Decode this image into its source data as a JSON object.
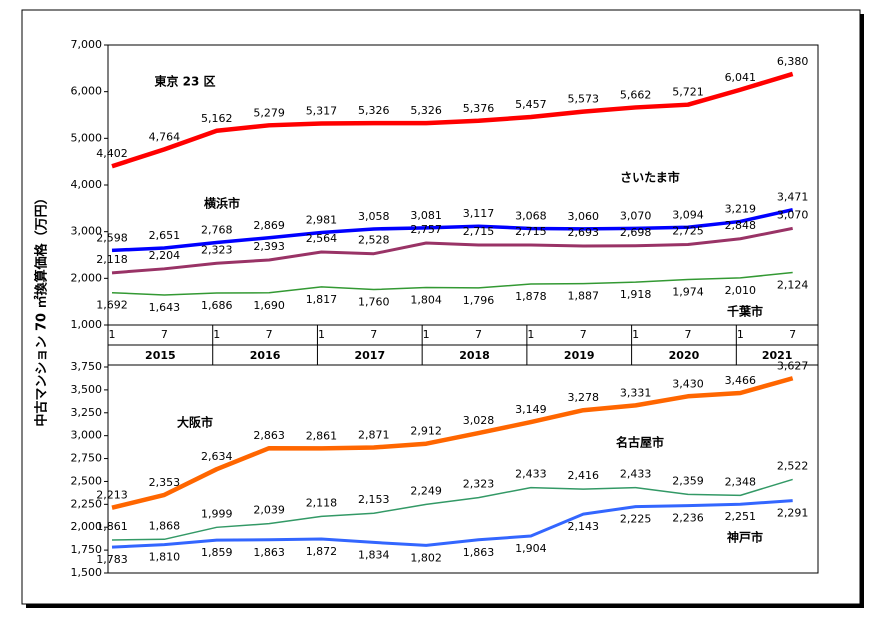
{
  "ylabel": "中古マンション 70 ㎡換算価格（万円）",
  "chart_data": [
    {
      "type": "line",
      "categories": [
        "1",
        "7",
        "1",
        "7",
        "1",
        "7",
        "1",
        "7",
        "1",
        "7",
        "1",
        "7",
        "1",
        "7"
      ],
      "years": [
        "2015",
        "2016",
        "2017",
        "2018",
        "2019",
        "2020",
        "2021"
      ],
      "ylim": [
        1000,
        7000
      ],
      "yticks": [
        {
          "value": 1000,
          "label": "1,000"
        },
        {
          "value": 2000,
          "label": "2,000"
        },
        {
          "value": 3000,
          "label": "3,000"
        },
        {
          "value": 4000,
          "label": "4,000"
        },
        {
          "value": 5000,
          "label": "5,000"
        },
        {
          "value": 6000,
          "label": "6,000"
        },
        {
          "value": 7000,
          "label": "7,000"
        }
      ],
      "series": [
        {
          "name": "東京 23 区",
          "color": "#ff0000",
          "values": [
            4402,
            4764,
            5162,
            5279,
            5317,
            5326,
            5326,
            5376,
            5457,
            5573,
            5662,
            5721,
            6041,
            6380
          ],
          "value_labels": [
            "4,402",
            "4,764",
            "5,162",
            "5,279",
            "5,317",
            "5,326",
            "5,326",
            "5,376",
            "5,457",
            "5,573",
            "5,662",
            "5,721",
            "6,041",
            "6,380"
          ]
        },
        {
          "name": "横浜市",
          "color": "#0000ff",
          "values": [
            2598,
            2651,
            2768,
            2869,
            2981,
            3058,
            3081,
            3117,
            3068,
            3060,
            3070,
            3094,
            3219,
            3471
          ],
          "value_labels": [
            "2,598",
            "2,651",
            "2,768",
            "2,869",
            "2,981",
            "3,058",
            "3,081",
            "3,117",
            "3,068",
            "3,060",
            "3,070",
            "3,094",
            "3,219",
            "3,471"
          ]
        },
        {
          "name": "さいたま市",
          "color": "#993366",
          "values": [
            2118,
            2204,
            2323,
            2393,
            2564,
            2528,
            2757,
            2715,
            2715,
            2693,
            2698,
            2725,
            2848,
            3070
          ],
          "value_labels": [
            "2,118",
            "2,204",
            "2,323",
            "2,393",
            "2,564",
            "2,528",
            "2,757",
            "2,715",
            "2,715",
            "2,693",
            "2,698",
            "2,725",
            "2,848",
            "3,070"
          ]
        },
        {
          "name": "千葉市",
          "color": "#339933",
          "values": [
            1692,
            1643,
            1686,
            1690,
            1817,
            1760,
            1804,
            1796,
            1878,
            1887,
            1918,
            1974,
            2010,
            2124
          ],
          "value_labels": [
            "1,692",
            "1,643",
            "1,686",
            "1,690",
            "1,817",
            "1,760",
            "1,804",
            "1,796",
            "1,878",
            "1,887",
            "1,918",
            "1,974",
            "2,010",
            "2,124"
          ]
        }
      ]
    },
    {
      "type": "line",
      "ylim": [
        1500,
        3750
      ],
      "yticks": [
        {
          "value": 1500,
          "label": "1,500"
        },
        {
          "value": 1750,
          "label": "1,750"
        },
        {
          "value": 2000,
          "label": "2,000"
        },
        {
          "value": 2250,
          "label": "2,250"
        },
        {
          "value": 2500,
          "label": "2,500"
        },
        {
          "value": 2750,
          "label": "2,750"
        },
        {
          "value": 3000,
          "label": "3,000"
        },
        {
          "value": 3250,
          "label": "3,250"
        },
        {
          "value": 3500,
          "label": "3,500"
        },
        {
          "value": 3750,
          "label": "3,750"
        }
      ],
      "series": [
        {
          "name": "大阪市",
          "color": "#ff6600",
          "values": [
            2213,
            2353,
            2634,
            2863,
            2861,
            2871,
            2912,
            3028,
            3149,
            3278,
            3331,
            3430,
            3466,
            3627
          ],
          "value_labels": [
            "2,213",
            "2,353",
            "2,634",
            "2,863",
            "2,861",
            "2,871",
            "2,912",
            "3,028",
            "3,149",
            "3,278",
            "3,331",
            "3,430",
            "3,466",
            "3,627"
          ]
        },
        {
          "name": "名古屋市",
          "color": "#339966",
          "values": [
            1861,
            1868,
            1999,
            2039,
            2118,
            2153,
            2249,
            2323,
            2433,
            2416,
            2433,
            2359,
            2348,
            2522
          ],
          "value_labels": [
            "1,861",
            "1,868",
            "1,999",
            "2,039",
            "2,118",
            "2,153",
            "2,249",
            "2,323",
            "2,433",
            "2,416",
            "2,433",
            "2,359",
            "2,348",
            "2,522"
          ]
        },
        {
          "name": "神戸市",
          "color": "#3366ff",
          "values": [
            1783,
            1810,
            1859,
            1863,
            1872,
            1834,
            1802,
            1863,
            1904,
            2143,
            2225,
            2236,
            2251,
            2291
          ],
          "value_labels": [
            "1,783",
            "1,810",
            "1,859",
            "1,863",
            "1,872",
            "1,834",
            "1,802",
            "1,863",
            "1,904",
            "2,143",
            "2,225",
            "2,236",
            "2,251",
            "2,291"
          ]
        }
      ]
    }
  ]
}
